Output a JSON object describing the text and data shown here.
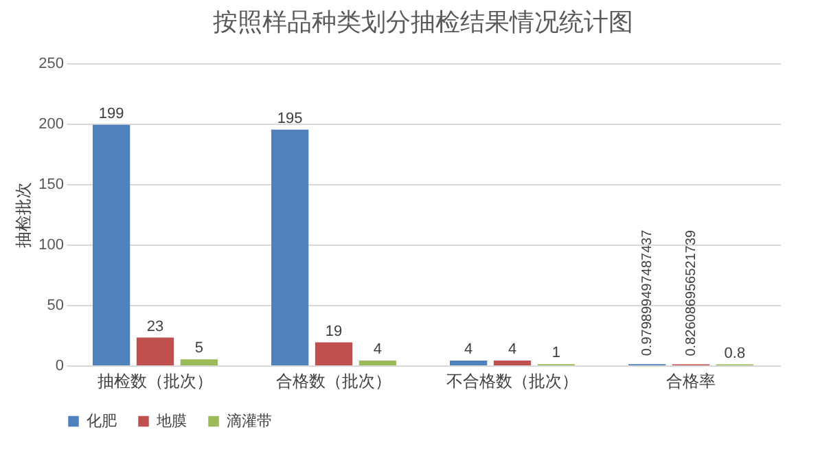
{
  "chart_data": {
    "type": "bar",
    "title": "按照样品种类划分抽检结果情况统计图",
    "ylabel": "抽检批次",
    "categories": [
      "抽检数（批次）",
      "合格数（批次）",
      "不合格数（批次）",
      "合格率"
    ],
    "series": [
      {
        "name": "化肥",
        "color": "#4f81bd",
        "values": [
          199,
          195,
          4,
          0.979899497487437
        ],
        "value_labels": [
          "199",
          "195",
          "4",
          "0.979899497487437"
        ]
      },
      {
        "name": "地膜",
        "color": "#c0504d",
        "values": [
          23,
          19,
          4,
          0.826086956521739
        ],
        "value_labels": [
          "23",
          "19",
          "4",
          "0.826086956521739"
        ]
      },
      {
        "name": "滴灌带",
        "color": "#9bbb59",
        "values": [
          5,
          4,
          1,
          0.8
        ],
        "value_labels": [
          "5",
          "4",
          "1",
          "0.8"
        ]
      }
    ],
    "ylim": [
      0,
      250
    ],
    "yticks": [
      0,
      50,
      100,
      150,
      200,
      250
    ],
    "grid": "y",
    "legend": "bottom"
  }
}
